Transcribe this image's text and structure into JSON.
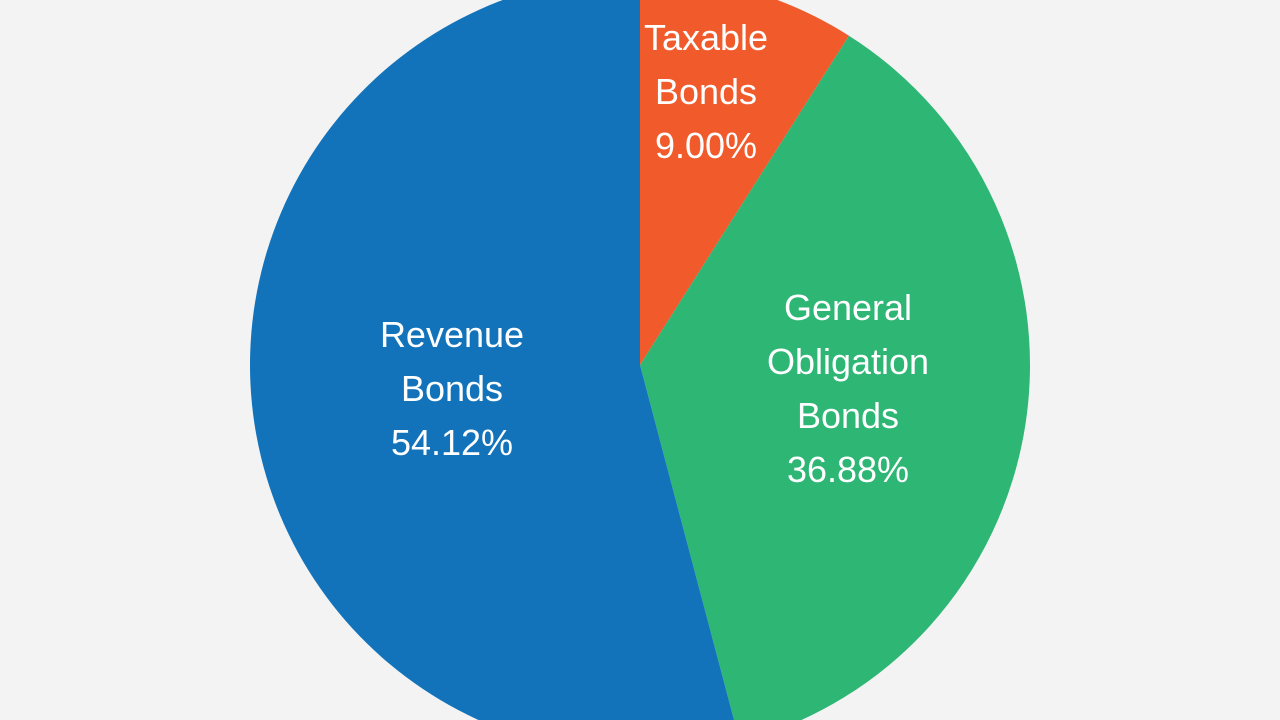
{
  "chart_data": {
    "type": "pie",
    "start_angle_deg": 0,
    "direction": "clockwise",
    "slices": [
      {
        "name": "Taxable Bonds",
        "value": 9.0,
        "color": "#f15a2b",
        "label_lines": [
          "Taxable",
          "Bonds",
          "9.00%"
        ]
      },
      {
        "name": "General Obligation Bonds",
        "value": 36.88,
        "color": "#2db674",
        "label_lines": [
          "General",
          "Obligation",
          "Bonds",
          "36.88%"
        ]
      },
      {
        "name": "Revenue Bonds",
        "value": 54.12,
        "color": "#1273bb",
        "label_lines": [
          "Revenue",
          "Bonds",
          "54.12%"
        ]
      }
    ]
  }
}
